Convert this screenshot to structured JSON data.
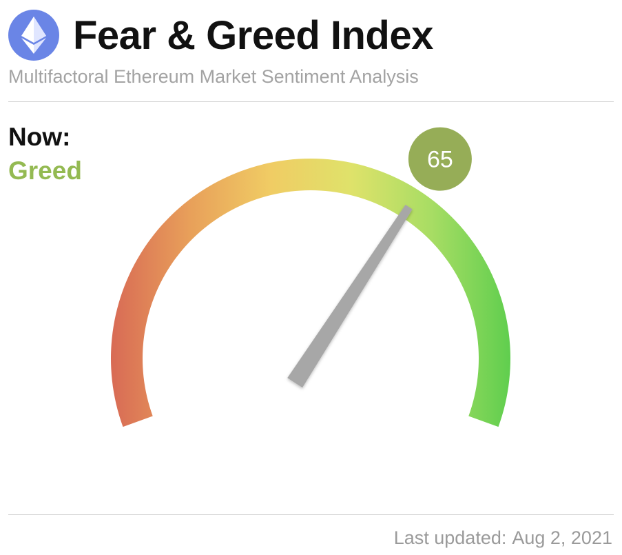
{
  "header": {
    "icon": "ethereum-icon",
    "title": "Fear & Greed Index",
    "subtitle": "Multifactoral Ethereum Market Sentiment Analysis"
  },
  "now": {
    "label": "Now:",
    "value": "Greed",
    "value_color": "#94ba52"
  },
  "gauge": {
    "value": 65,
    "min": 0,
    "max": 100,
    "badge_text": "65",
    "badge_color": "#96ad57",
    "gradient_colors": [
      "#d86a55",
      "#e8a05a",
      "#f0cc64",
      "#dfe26a",
      "#a8dd64",
      "#5fce4e"
    ],
    "needle_color": "#a7a7a7"
  },
  "footer": {
    "updated_label": "Last updated:",
    "updated_value": "Aug 2, 2021"
  }
}
